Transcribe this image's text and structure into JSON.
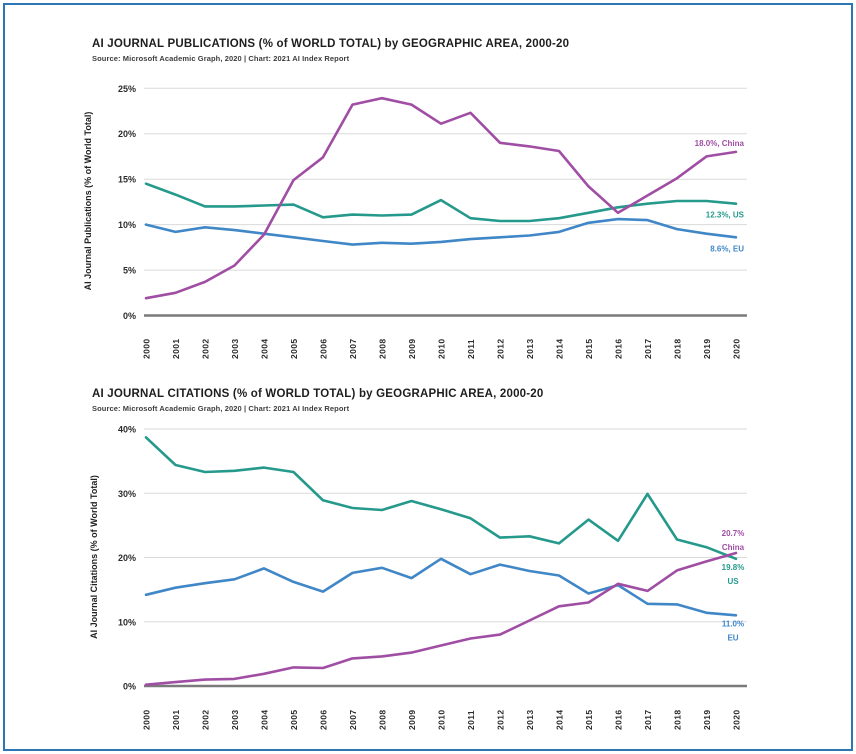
{
  "page": {
    "border_color": "#2E75B6",
    "background": "#FFFFFF"
  },
  "colors": {
    "china": "#A04EA4",
    "us": "#25998B",
    "eu": "#4087C7",
    "grid": "#DADADA",
    "axis": "#7A7A7A",
    "tick_text": "#2B2B2B",
    "title_text": "#1E1E1E",
    "source_text": "#3E3E3E"
  },
  "chart_data": [
    {
      "type": "line",
      "title": "AI JOURNAL PUBLICATIONS (% of WORLD TOTAL) by GEOGRAPHIC AREA, 2000-20",
      "source": "Source: Microsoft Academic Graph, 2020 | Chart: 2021 AI Index Report",
      "ylabel": "AI Journal Publications (% of World Total)",
      "xlabel": "",
      "grid": true,
      "legend_position": "end-of-line-labels",
      "x": [
        2000,
        2001,
        2002,
        2003,
        2004,
        2005,
        2006,
        2007,
        2008,
        2009,
        2010,
        2011,
        2012,
        2013,
        2014,
        2015,
        2016,
        2017,
        2018,
        2019,
        2020
      ],
      "ylim": [
        0,
        25
      ],
      "yticks": [
        0,
        5,
        10,
        15,
        20,
        25
      ],
      "ytick_suffix": "%",
      "series": [
        {
          "name": "US",
          "color": "#25998B",
          "values": [
            14.5,
            13.3,
            12.0,
            12.0,
            12.1,
            12.2,
            10.8,
            11.1,
            11.0,
            11.1,
            12.7,
            10.7,
            10.4,
            10.4,
            10.7,
            11.3,
            11.9,
            12.3,
            12.6,
            12.6,
            12.3
          ],
          "end_label_lines": [
            "12.3%, US"
          ],
          "label_side": "below"
        },
        {
          "name": "EU",
          "color": "#4087C7",
          "values": [
            10.0,
            9.2,
            9.7,
            9.4,
            9.0,
            8.6,
            8.2,
            7.8,
            8.0,
            7.9,
            8.1,
            8.4,
            8.6,
            8.8,
            9.2,
            10.2,
            10.6,
            10.5,
            9.5,
            9.0,
            8.6
          ],
          "end_label_lines": [
            "8.6%, EU"
          ],
          "label_side": "below"
        },
        {
          "name": "China",
          "color": "#A04EA4",
          "values": [
            1.9,
            2.5,
            3.7,
            5.5,
            8.9,
            14.9,
            17.4,
            23.2,
            23.9,
            23.2,
            21.1,
            22.3,
            19.0,
            18.6,
            18.1,
            14.2,
            11.3,
            13.2,
            15.1,
            17.5,
            18.0
          ],
          "end_label_lines": [
            "18.0%, China"
          ],
          "label_side": "above"
        }
      ]
    },
    {
      "type": "line",
      "title": "AI JOURNAL CITATIONS (% of WORLD TOTAL) by GEOGRAPHIC AREA, 2000-20",
      "source": "Source: Microsoft Academic Graph, 2020 | Chart: 2021 AI Index Report",
      "ylabel": "AI Journal Citations (% of World Total)",
      "xlabel": "",
      "grid": true,
      "legend_position": "end-of-line-labels",
      "x": [
        2000,
        2001,
        2002,
        2003,
        2004,
        2005,
        2006,
        2007,
        2008,
        2009,
        2010,
        2011,
        2012,
        2013,
        2014,
        2015,
        2016,
        2017,
        2018,
        2019,
        2020
      ],
      "ylim": [
        0,
        40
      ],
      "yticks": [
        0,
        10,
        20,
        30,
        40
      ],
      "ytick_suffix": "%",
      "series": [
        {
          "name": "US",
          "color": "#25998B",
          "values": [
            38.7,
            34.4,
            33.3,
            33.5,
            34.0,
            33.3,
            28.9,
            27.7,
            27.4,
            28.8,
            27.5,
            26.1,
            23.1,
            23.3,
            22.2,
            25.9,
            22.6,
            29.9,
            22.8,
            21.6,
            19.8
          ],
          "end_label_lines": [
            "19.8%",
            "US"
          ],
          "label_side": "below"
        },
        {
          "name": "EU",
          "color": "#4087C7",
          "values": [
            14.2,
            15.3,
            16.0,
            16.6,
            18.3,
            16.2,
            14.7,
            17.6,
            18.4,
            16.8,
            19.8,
            17.4,
            18.9,
            17.9,
            17.2,
            14.4,
            15.7,
            12.8,
            12.7,
            11.4,
            11.0
          ],
          "end_label_lines": [
            "11.0%",
            "EU"
          ],
          "label_side": "below"
        },
        {
          "name": "China",
          "color": "#A04EA4",
          "values": [
            0.2,
            0.6,
            1.0,
            1.1,
            1.9,
            2.9,
            2.8,
            4.3,
            4.6,
            5.2,
            6.3,
            7.4,
            8.0,
            10.2,
            12.4,
            13.0,
            15.9,
            14.8,
            18.0,
            19.4,
            20.7
          ],
          "end_label_lines": [
            "20.7%",
            "China"
          ],
          "label_side": "above"
        }
      ]
    }
  ]
}
